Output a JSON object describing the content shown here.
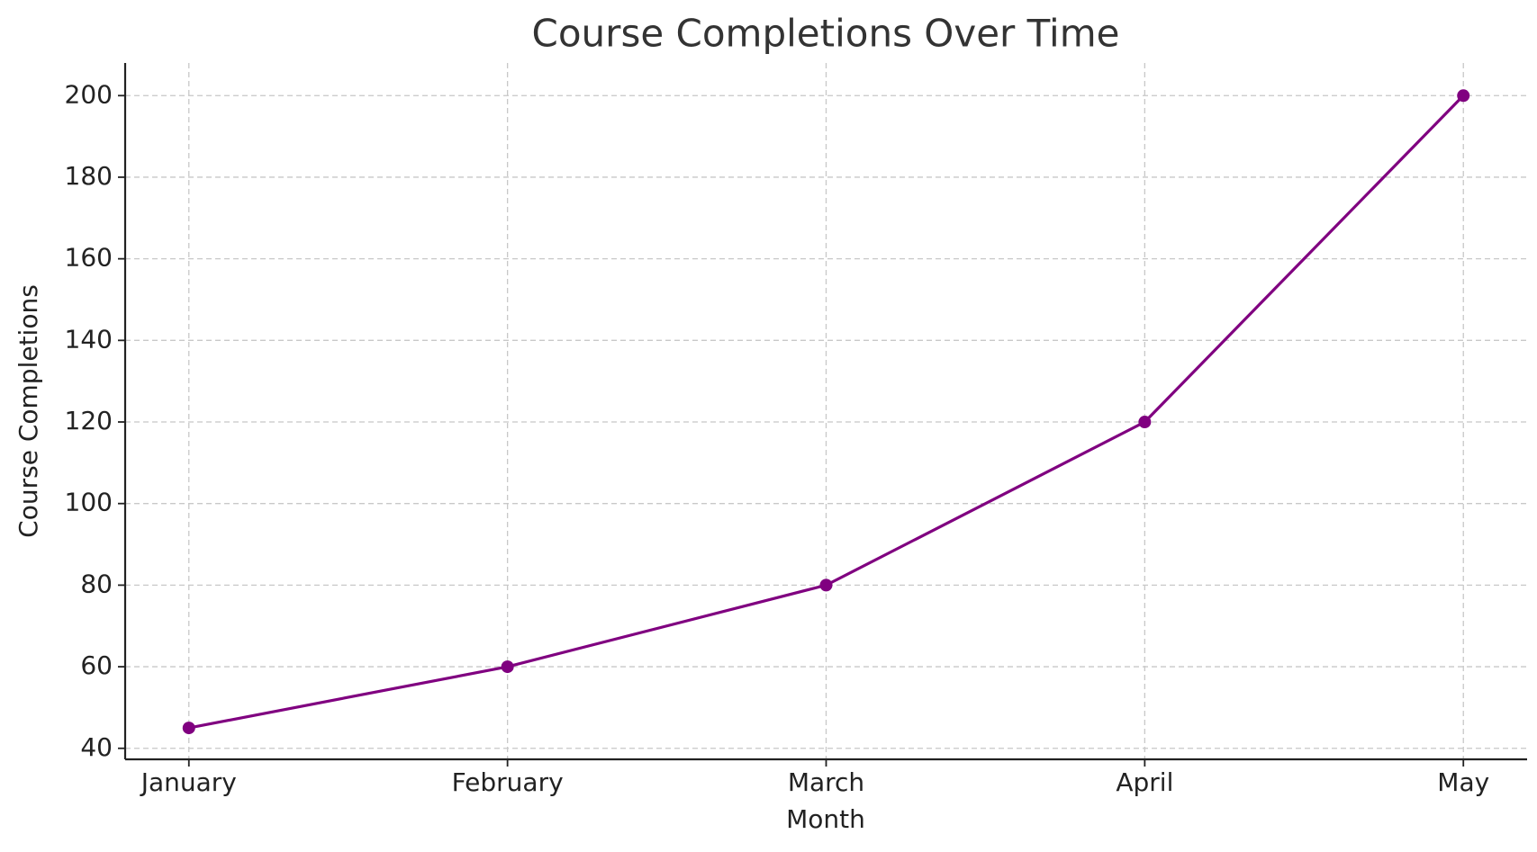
{
  "chart_data": {
    "type": "line",
    "title": "Course Completions Over Time",
    "x_label": "Month",
    "y_label": "Course Completions",
    "categories": [
      "January",
      "February",
      "March",
      "April",
      "May"
    ],
    "series": [
      {
        "name": "Course Completions",
        "color": "#800080",
        "values": [
          45,
          60,
          80,
          120,
          200
        ]
      }
    ],
    "ylim": [
      37.3,
      208
    ],
    "yticks": [
      40,
      60,
      80,
      100,
      120,
      140,
      160,
      180,
      200
    ],
    "grid": true
  }
}
